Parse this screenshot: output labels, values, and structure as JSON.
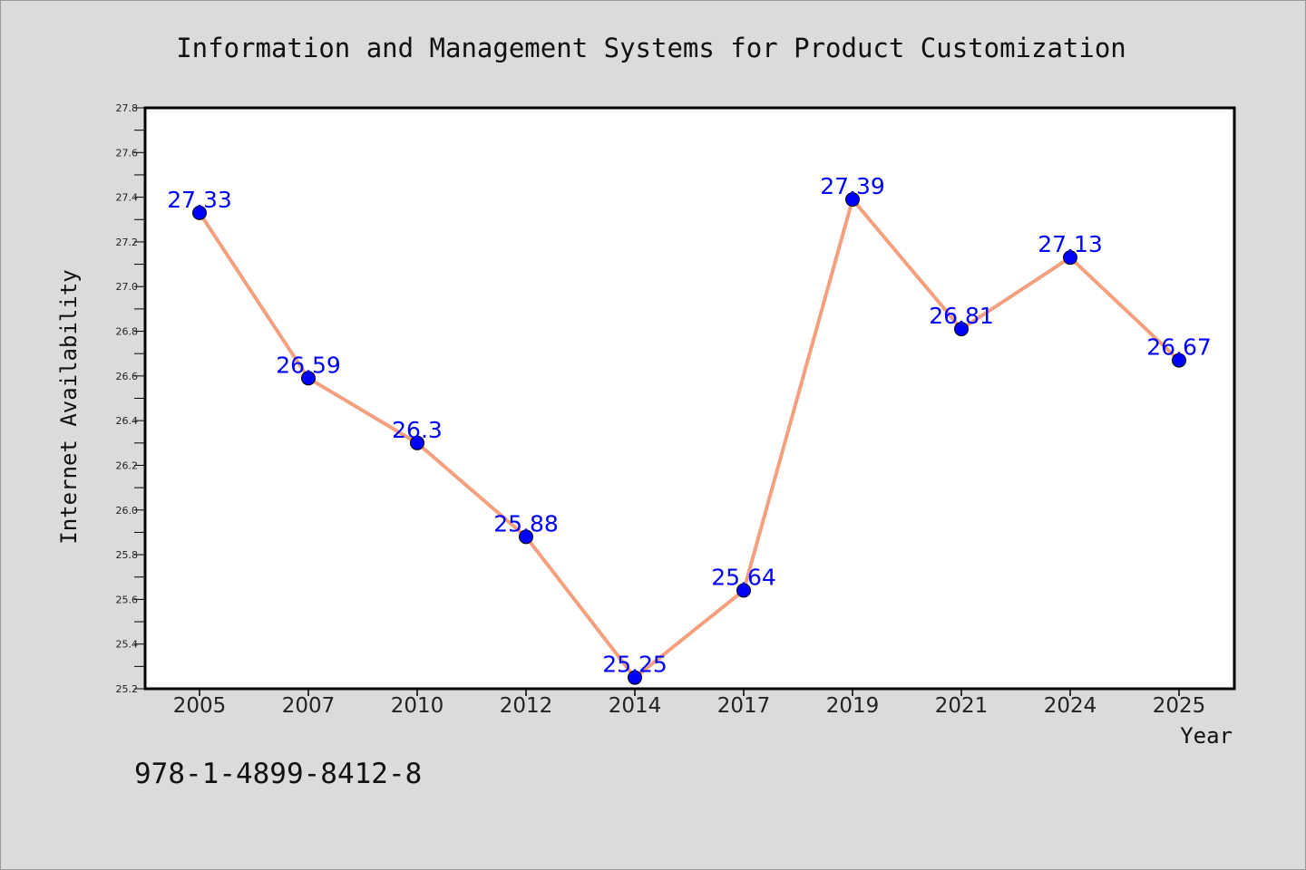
{
  "chart_data": {
    "type": "line",
    "title": "Information and Management Systems for Product Customization",
    "xlabel": "Year",
    "ylabel": "Internet Availability",
    "categories": [
      "2005",
      "2007",
      "2010",
      "2012",
      "2014",
      "2017",
      "2019",
      "2021",
      "2024",
      "2025"
    ],
    "values": [
      27.33,
      26.59,
      26.3,
      25.88,
      25.25,
      25.64,
      27.39,
      26.81,
      27.13,
      26.67
    ],
    "data_labels": [
      "27.33",
      "26.59",
      "26.3",
      "25.88",
      "25.25",
      "25.64",
      "27.39",
      "26.81",
      "27.13",
      "26.67"
    ],
    "ylim": [
      25.2,
      27.8
    ],
    "yticks": [
      "25.2",
      "25.4",
      "25.6",
      "25.8",
      "26.0",
      "26.2",
      "26.4",
      "26.6",
      "26.8",
      "27.0",
      "27.2",
      "27.4",
      "27.6",
      "27.8"
    ],
    "grid": false,
    "line_color": "#f4a07f",
    "marker_color": "#0000ff",
    "label_color": "#0000ff"
  },
  "footer": {
    "isbn": "978-1-4899-8412-8"
  }
}
